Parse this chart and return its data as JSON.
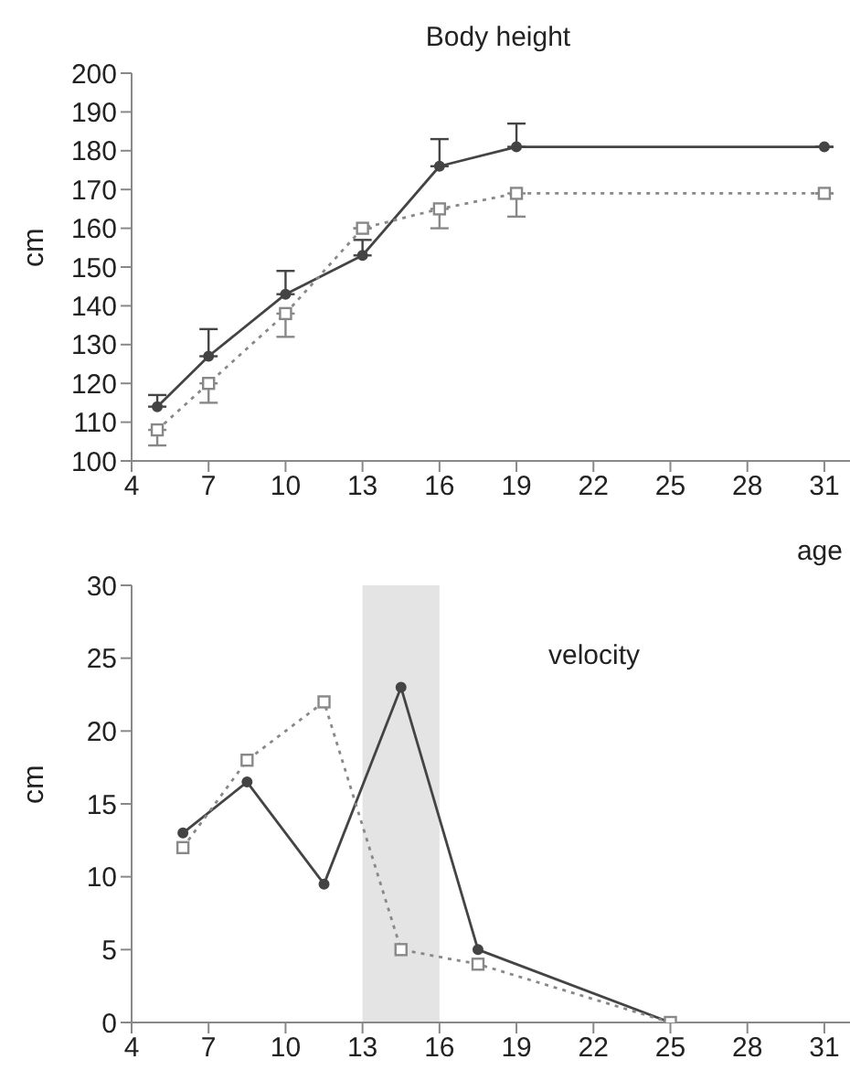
{
  "chart_data": [
    {
      "type": "line",
      "title": "Body height",
      "xlabel": "age",
      "ylabel": "cm",
      "x": [
        5,
        7,
        10,
        13,
        16,
        19,
        31
      ],
      "xlim": [
        4,
        32
      ],
      "xticks": [
        4,
        7,
        10,
        13,
        16,
        19,
        22,
        25,
        28,
        31
      ],
      "ylim": [
        100,
        200
      ],
      "yticks": [
        100,
        110,
        120,
        130,
        140,
        150,
        160,
        170,
        180,
        190,
        200
      ],
      "grid": false,
      "legend": false,
      "series": [
        {
          "color": "#444444",
          "marker": "circle",
          "line_style": "solid",
          "values": [
            114,
            127,
            143,
            153,
            176,
            181,
            181
          ],
          "errors": [
            [
              114,
              117
            ],
            [
              127,
              134
            ],
            [
              143,
              149
            ],
            [
              153,
              157
            ],
            [
              176,
              183
            ],
            [
              181,
              187
            ],
            null
          ]
        },
        {
          "color": "#888888",
          "marker": "square",
          "line_style": "dotted",
          "values": [
            108,
            120,
            138,
            160,
            165,
            169,
            169
          ],
          "errors": [
            [
              104,
              108
            ],
            [
              115,
              120
            ],
            [
              132,
              138
            ],
            null,
            [
              160,
              165
            ],
            [
              163,
              169
            ],
            null
          ]
        }
      ]
    },
    {
      "type": "line",
      "ylabel": "cm",
      "annotations": [
        "velocity"
      ],
      "x": [
        6,
        8.5,
        11.5,
        14.5,
        17.5,
        25
      ],
      "xlim": [
        4,
        32
      ],
      "xticks": [
        4,
        7,
        10,
        13,
        16,
        19,
        22,
        25,
        28,
        31
      ],
      "ylim": [
        0,
        30
      ],
      "yticks": [
        0,
        5,
        10,
        15,
        20,
        25,
        30
      ],
      "grid": false,
      "legend": false,
      "bands": [
        {
          "axis": "x",
          "from": 13,
          "to": 16,
          "color": "#e4e4e4"
        }
      ],
      "series": [
        {
          "color": "#444444",
          "marker": "circle",
          "line_style": "solid",
          "values": [
            13,
            16.5,
            9.5,
            23,
            5,
            0
          ]
        },
        {
          "color": "#888888",
          "marker": "square",
          "line_style": "dotted",
          "values": [
            12,
            18,
            22,
            5,
            4,
            0
          ]
        }
      ]
    }
  ]
}
